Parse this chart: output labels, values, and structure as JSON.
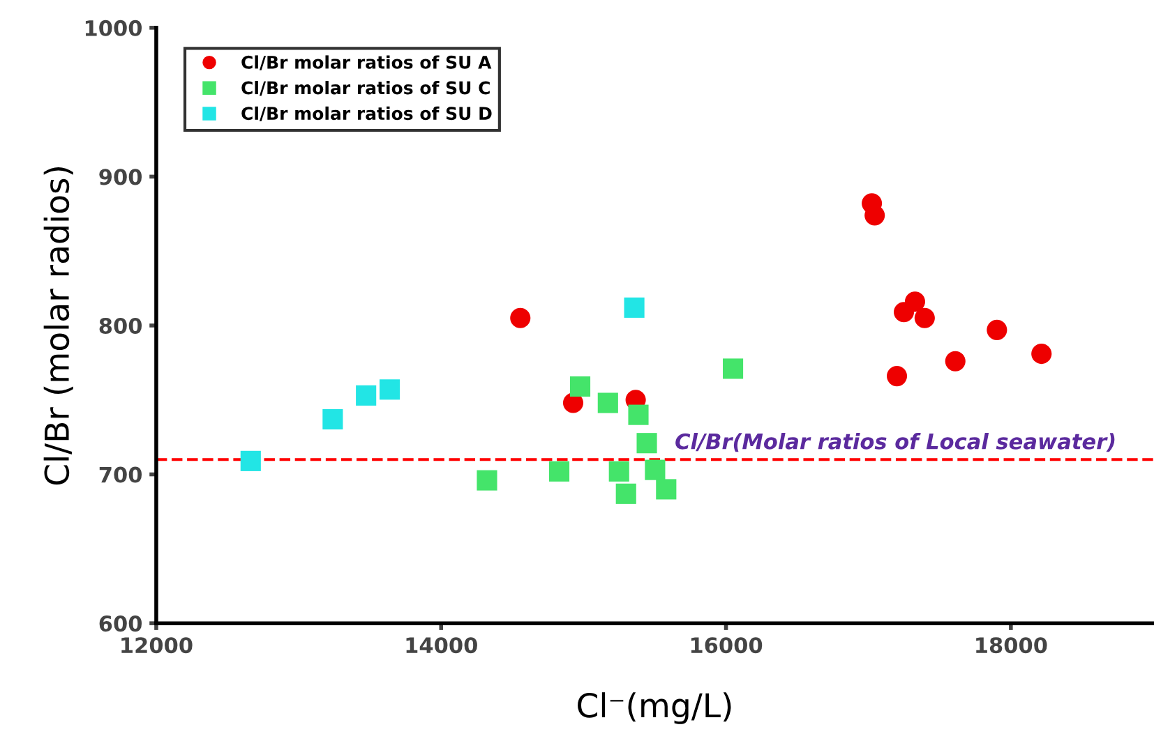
{
  "chart_data": {
    "type": "scatter",
    "xlabel": "Cl⁻(mg/L)",
    "ylabel": "Cl/Br (molar radios)",
    "xlim": [
      12000,
      19000
    ],
    "xticks": [
      12000,
      14000,
      16000,
      18000
    ],
    "ylim": [
      600,
      1000
    ],
    "yticks": [
      600,
      700,
      800,
      900,
      1000
    ],
    "grid": false,
    "legend": "top left",
    "series": [
      {
        "name": "Cl/Br molar ratios of SU A",
        "color": "#ee0000",
        "marker": "circle",
        "x": [
          14556,
          14927,
          15366,
          17024,
          17044,
          17327,
          17249,
          17395,
          17902,
          18215,
          17610,
          17200
        ],
        "values": [
          805,
          748,
          750,
          882,
          874,
          816,
          809,
          805,
          797,
          781,
          776,
          766
        ]
      },
      {
        "name": "Cl/Br molar ratios of SU C",
        "color": "#44e46a",
        "marker": "square",
        "x": [
          14322,
          14829,
          14976,
          15171,
          15249,
          15298,
          15385,
          15444,
          15502,
          15580,
          16049
        ],
        "values": [
          696,
          702,
          759,
          748,
          702,
          687,
          740,
          721,
          703,
          690,
          771
        ]
      },
      {
        "name": "Cl/Br molar ratios of SU D",
        "color": "#22e5e5",
        "marker": "square",
        "x": [
          12663,
          13239,
          13473,
          13639,
          15356
        ],
        "values": [
          709,
          737,
          753,
          757,
          812
        ]
      }
    ],
    "ref_lines": [
      {
        "axis": "y",
        "value": 710,
        "label": "Cl/Br(Molar ratios of Local seawater)",
        "color": "#ff0000",
        "line_style": "dashed"
      }
    ]
  }
}
